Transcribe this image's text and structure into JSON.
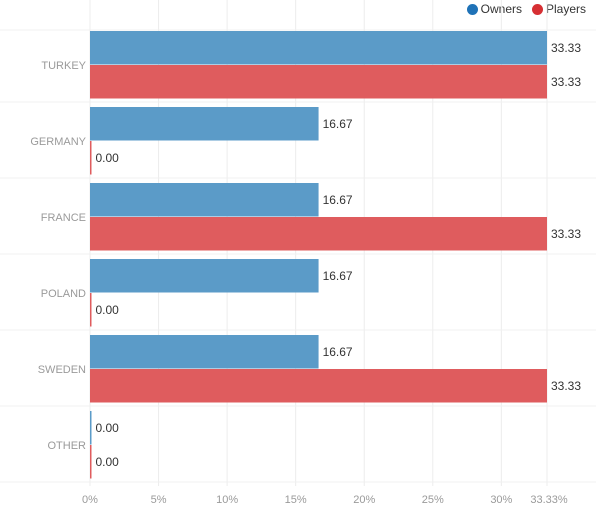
{
  "chart_data": {
    "type": "bar",
    "orientation": "horizontal",
    "categories": [
      "TURKEY",
      "GERMANY",
      "FRANCE",
      "POLAND",
      "SWEDEN",
      "OTHER"
    ],
    "series": [
      {
        "name": "Owners",
        "color": "#5b9bc8",
        "legend_color": "#1f72b7",
        "values": [
          33.33,
          16.67,
          16.67,
          16.67,
          16.67,
          0.0
        ],
        "labels": [
          "33.33",
          "16.67",
          "16.67",
          "16.67",
          "16.67",
          "0.00"
        ]
      },
      {
        "name": "Players",
        "color": "#df5c5e",
        "legend_color": "#d62f33",
        "values": [
          33.33,
          0.0,
          33.33,
          0.0,
          33.33,
          0.0
        ],
        "labels": [
          "33.33",
          "0.00",
          "33.33",
          "0.00",
          "33.33",
          "0.00"
        ]
      }
    ],
    "xlim": [
      0,
      33.33
    ],
    "xticks": [
      0,
      5,
      10,
      15,
      20,
      25,
      30,
      33.33
    ],
    "xtick_labels": [
      "0%",
      "5%",
      "10%",
      "15%",
      "20%",
      "25%",
      "30%",
      "33.33%"
    ],
    "grid": true,
    "legend_position": "top-right"
  }
}
